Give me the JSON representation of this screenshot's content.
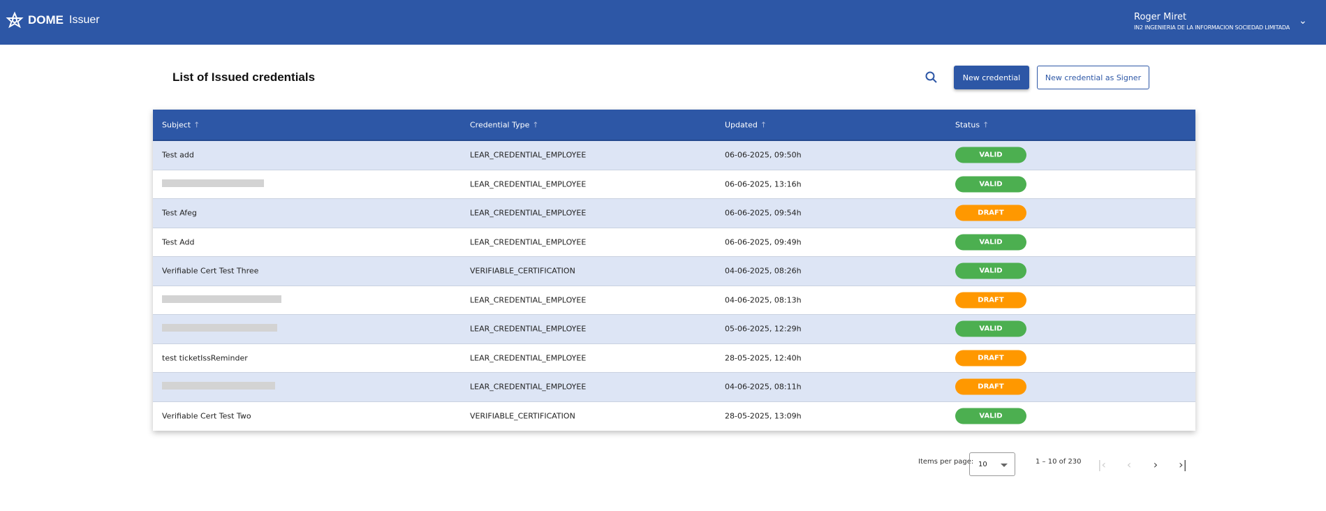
{
  "header": {
    "brand": "DOME",
    "app": "Issuer",
    "user_name": "Roger Miret",
    "organization": "IN2 INGENIERIA DE LA INFORMACION SOCIEDAD LIMITADA"
  },
  "page": {
    "title": "List of Issued credentials",
    "new_credential": "New credential",
    "new_credential_signer": "New credential as Signer"
  },
  "table": {
    "columns": [
      "Subject",
      "Credential Type",
      "Updated",
      "Status"
    ],
    "rows": [
      {
        "subject": "Test add",
        "type": "LEAR_CREDENTIAL_EMPLOYEE",
        "updated": "06-06-2025, 09:50h",
        "status": "VALID"
      },
      {
        "subject": "",
        "type": "LEAR_CREDENTIAL_EMPLOYEE",
        "updated": "06-06-2025, 13:16h",
        "status": "VALID"
      },
      {
        "subject": "Test Afeg",
        "type": "LEAR_CREDENTIAL_EMPLOYEE",
        "updated": "06-06-2025, 09:54h",
        "status": "DRAFT"
      },
      {
        "subject": "Test Add",
        "type": "LEAR_CREDENTIAL_EMPLOYEE",
        "updated": "06-06-2025, 09:49h",
        "status": "VALID"
      },
      {
        "subject": "Verifiable Cert Test Three",
        "type": "VERIFIABLE_CERTIFICATION",
        "updated": "04-06-2025, 08:26h",
        "status": "VALID"
      },
      {
        "subject": "",
        "type": "LEAR_CREDENTIAL_EMPLOYEE",
        "updated": "04-06-2025, 08:13h",
        "status": "DRAFT"
      },
      {
        "subject": "",
        "type": "LEAR_CREDENTIAL_EMPLOYEE",
        "updated": "05-06-2025, 12:29h",
        "status": "VALID"
      },
      {
        "subject": "test ticketIssReminder",
        "type": "LEAR_CREDENTIAL_EMPLOYEE",
        "updated": "28-05-2025, 12:40h",
        "status": "DRAFT"
      },
      {
        "subject": "",
        "type": "LEAR_CREDENTIAL_EMPLOYEE",
        "updated": "04-06-2025, 08:11h",
        "status": "DRAFT"
      },
      {
        "subject": "Verifiable Cert Test Two",
        "type": "VERIFIABLE_CERTIFICATION",
        "updated": "28-05-2025, 13:09h",
        "status": "VALID"
      }
    ]
  },
  "status_colors": {
    "VALID": "#4caf50",
    "DRAFT": "#ff9800"
  },
  "pagination": {
    "items_per_page_label": "Items per page:",
    "items_per_page": "10",
    "range": "1 – 10 of 230"
  },
  "colors": {
    "primary": "#2d57a6",
    "row_alt": "#dde5f5"
  }
}
